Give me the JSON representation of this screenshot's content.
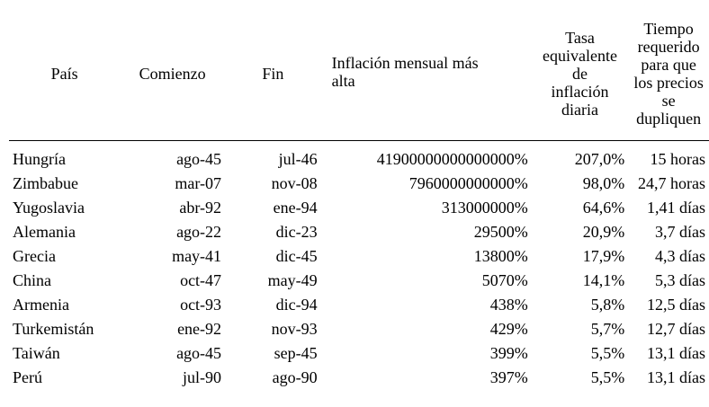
{
  "table": {
    "headers": {
      "country": "País",
      "start": "Comienzo",
      "end": "Fin",
      "monthly_inflation": "Inflación mensual más\nalta",
      "daily_rate": "Tasa\nequivalente\nde\ninflación\ndiaria",
      "doubling_time": "Tiempo\nrequerido\npara que\nlos precios\nse\ndupliquen"
    },
    "rows": [
      {
        "country": "Hungría",
        "start": "ago-45",
        "end": "jul-46",
        "monthly": "41900000000000000%",
        "daily": "207,0%",
        "doubling": "15 horas"
      },
      {
        "country": "Zimbabue",
        "start": "mar-07",
        "end": "nov-08",
        "monthly": "7960000000000%",
        "daily": "98,0%",
        "doubling": "24,7 horas"
      },
      {
        "country": "Yugoslavia",
        "start": "abr-92",
        "end": "ene-94",
        "monthly": "313000000%",
        "daily": "64,6%",
        "doubling": "1,41 días"
      },
      {
        "country": "Alemania",
        "start": "ago-22",
        "end": "dic-23",
        "monthly": "29500%",
        "daily": "20,9%",
        "doubling": "3,7 días"
      },
      {
        "country": "Grecia",
        "start": "may-41",
        "end": "dic-45",
        "monthly": "13800%",
        "daily": "17,9%",
        "doubling": "4,3 días"
      },
      {
        "country": "China",
        "start": "oct-47",
        "end": "may-49",
        "monthly": "5070%",
        "daily": "14,1%",
        "doubling": "5,3 días"
      },
      {
        "country": "Armenia",
        "start": "oct-93",
        "end": "dic-94",
        "monthly": "438%",
        "daily": "5,8%",
        "doubling": "12,5 días"
      },
      {
        "country": "Turkemistán",
        "start": "ene-92",
        "end": "nov-93",
        "monthly": "429%",
        "daily": "5,7%",
        "doubling": "12,7 días"
      },
      {
        "country": "Taiwán",
        "start": "ago-45",
        "end": "sep-45",
        "monthly": "399%",
        "daily": "5,5%",
        "doubling": "13,1 días"
      },
      {
        "country": "Perú",
        "start": "jul-90",
        "end": "ago-90",
        "monthly": "397%",
        "daily": "5,5%",
        "doubling": "13,1 días"
      }
    ]
  }
}
